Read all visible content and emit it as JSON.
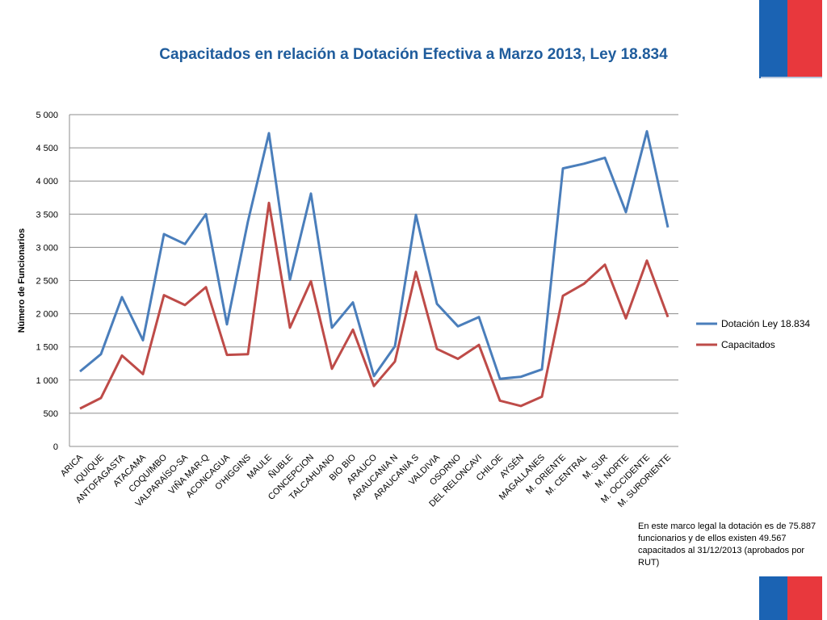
{
  "chart_data": {
    "type": "line",
    "title": "Capacitados en relación a Dotación Efectiva a Marzo 2013, Ley 18.834",
    "ylabel": "Número de Funcionarios",
    "xlabel": "",
    "ylim": [
      0,
      5000
    ],
    "yticks": [
      0,
      500,
      1000,
      1500,
      2000,
      2500,
      3000,
      3500,
      4000,
      4500,
      5000
    ],
    "ytick_labels": [
      "0",
      "500",
      "1 000",
      "1 500",
      "2 000",
      "2 500",
      "3 000",
      "3 500",
      "4 000",
      "4 500",
      "5 000"
    ],
    "grid": true,
    "legend_position": "right",
    "categories": [
      "ARICA",
      "IQUIQUE",
      "ANTOFAGASTA",
      "ATACAMA",
      "COQUIMBO",
      "VALPARAÍSO-SA",
      "VIÑA MAR-Q",
      "ACONCAGUA",
      "O'HIGGINS",
      "MAULE",
      "ÑUBLE",
      "CONCEPCION",
      "TALCAHUANO",
      "BIO BIO",
      "ARAUCO",
      "ARAUCANIA N",
      "ARAUCANIA S",
      "VALDIVIA",
      "OSORNO",
      "DEL RELONCAVI",
      "CHILOE",
      "AYSÉN",
      "MAGALLANES",
      "M. ORIENTE",
      "M. CENTRAL",
      "M. SUR",
      "M. NORTE",
      "M. OCCIDENTE",
      "M. SURORIENTE"
    ],
    "series": [
      {
        "name": "Dotación Ley 18.834",
        "color": "#4a7ebb",
        "values": [
          1130,
          1390,
          2250,
          1600,
          3200,
          3050,
          3500,
          1840,
          3390,
          4720,
          2510,
          3810,
          1790,
          2170,
          1060,
          1510,
          3490,
          2150,
          1810,
          1950,
          1020,
          1050,
          1160,
          4190,
          4260,
          4350,
          3530,
          4750,
          3300
        ]
      },
      {
        "name": "Capacitados",
        "color": "#be4b48",
        "values": [
          570,
          730,
          1370,
          1090,
          2280,
          2130,
          2400,
          1380,
          1390,
          3670,
          1790,
          2490,
          1170,
          1760,
          910,
          1280,
          2630,
          1470,
          1320,
          1530,
          690,
          610,
          750,
          2270,
          2450,
          2740,
          1930,
          2800,
          1950
        ]
      }
    ]
  },
  "note_text": "En este marco legal la dotación es de 75.887 funcionarios y de ellos existen 49.567 capacitados al 31/12/2013 (aprobados por RUT)",
  "colors": {
    "title": "#1f5c9c",
    "flag_blue": "#1b63b3",
    "flag_red": "#e8383d",
    "grid": "#8c8c8c"
  }
}
